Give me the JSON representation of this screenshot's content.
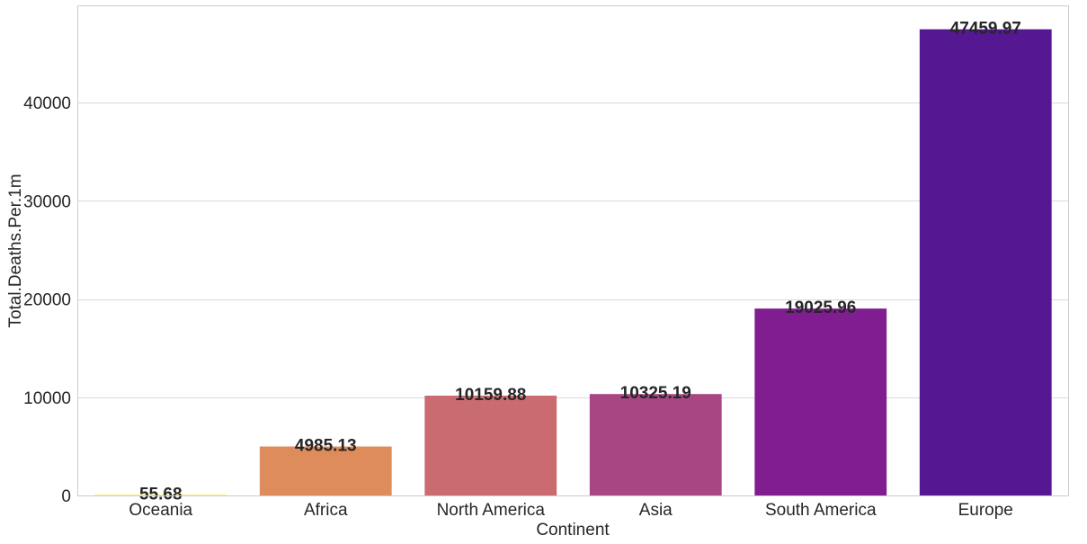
{
  "chart_data": {
    "type": "bar",
    "categories": [
      "Oceania",
      "Africa",
      "North America",
      "Asia",
      "South America",
      "Europe"
    ],
    "values": [
      55.68,
      4985.13,
      10159.88,
      10325.19,
      19025.96,
      47459.97
    ],
    "data_labels": [
      "55.68",
      "4985.13",
      "10159.88",
      "10325.19",
      "19025.96",
      "47459.97"
    ],
    "bar_colors": [
      "#f9ed35",
      "#df8c5c",
      "#c96b70",
      "#a74683",
      "#7f1d91",
      "#561793"
    ],
    "title": "",
    "xlabel": "Continent",
    "ylabel": "Total.Deaths.Per.1m",
    "ylim": [
      0,
      49800
    ],
    "yticks": [
      0,
      10000,
      20000,
      30000,
      40000
    ],
    "ytick_labels": [
      "0",
      "10000",
      "20000",
      "30000",
      "40000"
    ],
    "grid": "horizontal",
    "legend": "none"
  }
}
